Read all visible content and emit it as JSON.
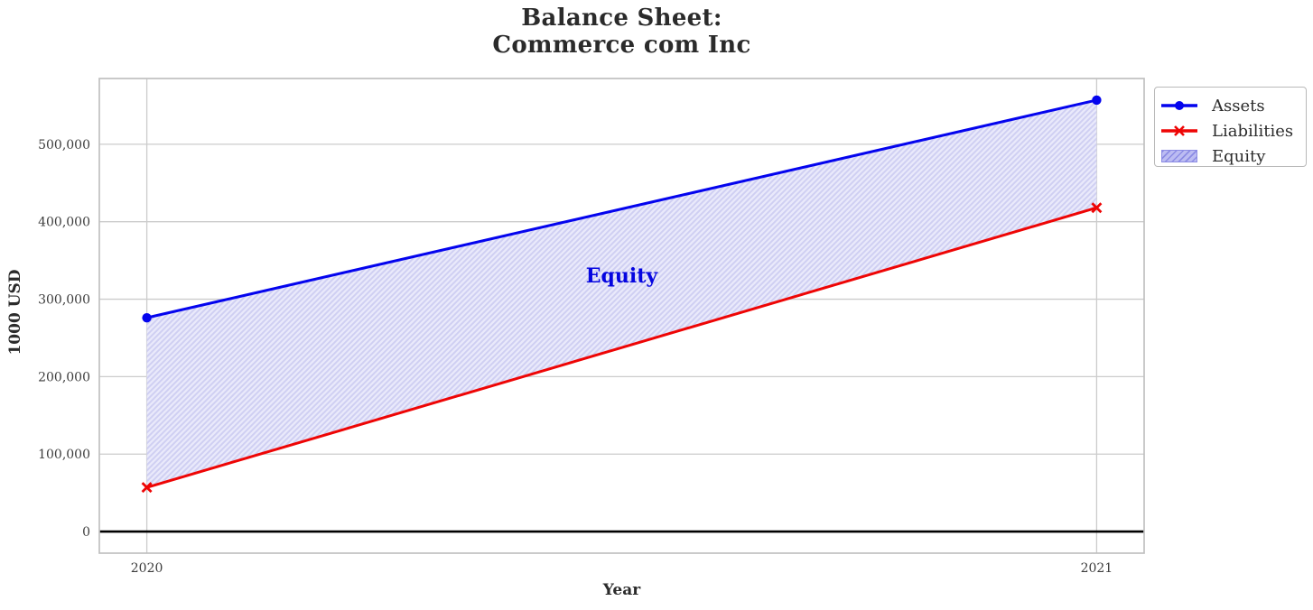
{
  "title": {
    "line1": "Balance Sheet:",
    "line2": "Commerce com Inc"
  },
  "axes": {
    "xlabel": "Year",
    "ylabel": "1000 USD"
  },
  "legend": {
    "items": [
      {
        "label": "Assets",
        "marker": "blue-line-circle"
      },
      {
        "label": "Liabilities",
        "marker": "red-line-x"
      },
      {
        "label": "Equity",
        "marker": "hatched-patch"
      }
    ]
  },
  "annotation": {
    "text": "Equity"
  },
  "colors": {
    "assets": "#0404ee",
    "liabilities": "#ee0505",
    "equity_fill": "#e9e9fb",
    "equity_hatch": "#cfcff2",
    "legend_swatch_bg": "#bcbcf2",
    "legend_swatch_stripe": "#8c8ce4",
    "annotation_text": "#0505e0",
    "grid": "#cccccc",
    "spine": "#c0c0c0",
    "tick_text": "#3d3d3d",
    "title_text": "#2b2b2b",
    "zero_line": "#000000"
  },
  "chart_data": {
    "type": "line",
    "title": "Balance Sheet: Commerce com Inc",
    "xlabel": "Year",
    "ylabel": "1000 USD",
    "x": [
      2020,
      2021
    ],
    "series": [
      {
        "name": "Assets",
        "values": [
          276000,
          557000
        ],
        "color": "#0404ee",
        "marker": "circle",
        "linewidth": 3
      },
      {
        "name": "Liabilities",
        "values": [
          57000,
          418000
        ],
        "color": "#ee0505",
        "marker": "x",
        "linewidth": 3
      }
    ],
    "fill_between": {
      "label": "Equity",
      "upper": "Assets",
      "lower": "Liabilities",
      "style": "hatched '/'",
      "derived_values": [
        219000,
        139000
      ]
    },
    "annotation": {
      "text": "Equity",
      "x": 2020.5,
      "y": 331000
    },
    "xlim": [
      2019.95,
      2021.05
    ],
    "ylim": [
      -27850,
      584850
    ],
    "xticks": [
      2020,
      2021
    ],
    "xtick_labels": [
      "2020",
      "2021"
    ],
    "yticks": [
      0,
      100000,
      200000,
      300000,
      400000,
      500000
    ],
    "ytick_labels": [
      "0",
      "100,000",
      "200,000",
      "300,000",
      "400,000",
      "500,000"
    ],
    "grid": true,
    "zero_line_y": 0,
    "legend_position": "outside-upper-right"
  }
}
